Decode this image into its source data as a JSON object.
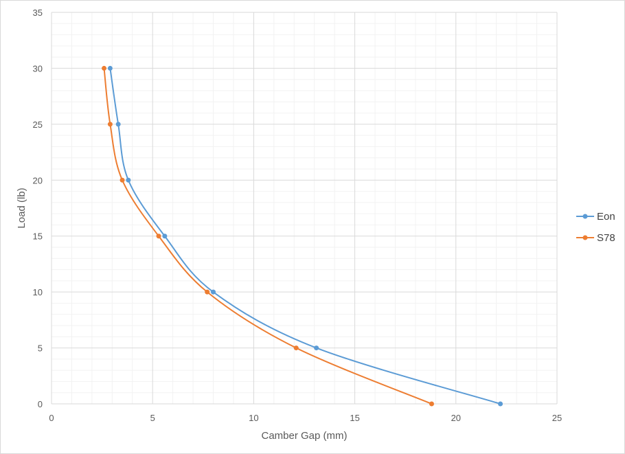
{
  "chart_data": {
    "type": "scatter",
    "title": "",
    "xlabel": "Camber Gap (mm)",
    "ylabel": "Load (lb)",
    "xlim": [
      0,
      25
    ],
    "ylim": [
      0,
      35
    ],
    "xticks": [
      0,
      5,
      10,
      15,
      20,
      25
    ],
    "yticks": [
      0,
      5,
      10,
      15,
      20,
      25,
      30,
      35
    ],
    "grid": true,
    "minor_grid": true,
    "smooth_lines": true,
    "legend_position": "right",
    "series": [
      {
        "name": "Eon",
        "color": "#5b9bd5",
        "points": [
          {
            "x": 22.2,
            "y": 0
          },
          {
            "x": 13.1,
            "y": 5
          },
          {
            "x": 8.0,
            "y": 10
          },
          {
            "x": 5.6,
            "y": 15
          },
          {
            "x": 3.8,
            "y": 20
          },
          {
            "x": 3.3,
            "y": 25
          },
          {
            "x": 2.9,
            "y": 30
          }
        ]
      },
      {
        "name": "S78",
        "color": "#ed7d31",
        "points": [
          {
            "x": 18.8,
            "y": 0
          },
          {
            "x": 12.1,
            "y": 5
          },
          {
            "x": 7.7,
            "y": 10
          },
          {
            "x": 5.3,
            "y": 15
          },
          {
            "x": 3.5,
            "y": 20
          },
          {
            "x": 2.9,
            "y": 25
          },
          {
            "x": 2.6,
            "y": 30
          }
        ]
      }
    ]
  }
}
